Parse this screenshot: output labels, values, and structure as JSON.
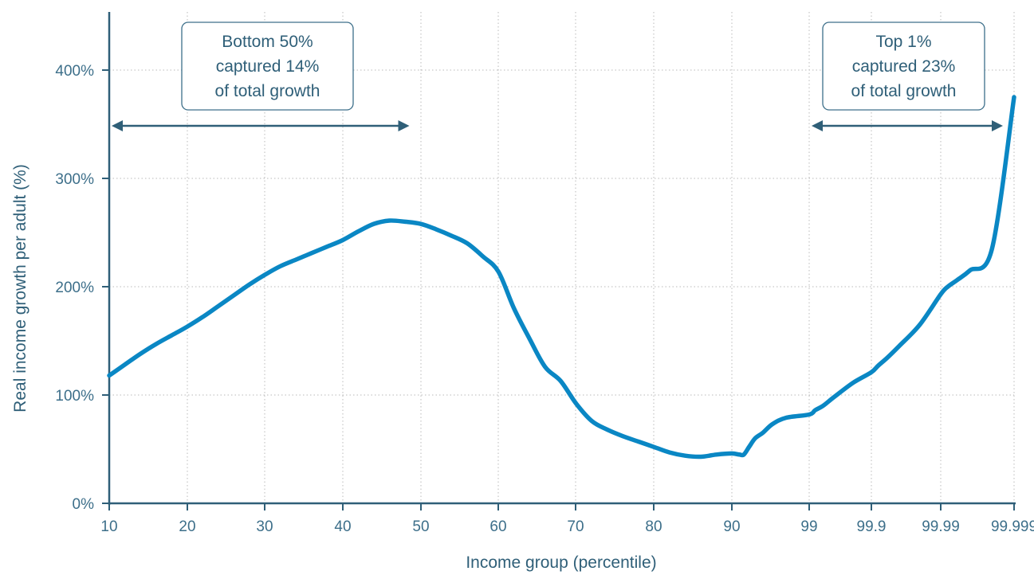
{
  "chart_data": {
    "type": "line",
    "xlabel": "Income group (percentile)",
    "ylabel": "Real income growth per adult (%)",
    "ylim": [
      0,
      450
    ],
    "y_ticks": [
      {
        "value": 0,
        "label": "0%"
      },
      {
        "value": 100,
        "label": "100%"
      },
      {
        "value": 200,
        "label": "200%"
      },
      {
        "value": 300,
        "label": "300%"
      },
      {
        "value": 400,
        "label": "400%"
      }
    ],
    "x_ticks": [
      "10",
      "20",
      "30",
      "40",
      "50",
      "60",
      "70",
      "80",
      "90",
      "99",
      "99.9",
      "99.99",
      "99.999"
    ],
    "grid": true,
    "line_color": "#0a87c4",
    "series": [
      {
        "x": [
          10,
          12,
          14,
          16,
          18,
          20,
          22,
          24,
          26,
          28,
          30,
          32,
          34,
          36,
          38,
          40,
          42,
          44,
          46,
          48,
          50,
          52,
          54,
          56,
          58,
          60,
          62,
          64,
          66,
          68,
          70,
          72,
          74,
          76,
          78,
          80,
          82,
          84,
          86,
          88,
          90,
          92,
          93,
          94,
          95,
          96,
          97,
          98,
          99,
          99.2,
          99.4,
          99.6,
          99.8,
          99.9,
          99.92,
          99.94,
          99.96,
          99.98,
          99.99,
          99.992,
          99.994,
          99.996,
          99.998,
          99.999
        ],
        "y": [
          118,
          128,
          138,
          147,
          155,
          163,
          172,
          182,
          192,
          202,
          211,
          219,
          225,
          231,
          237,
          243,
          251,
          258,
          261,
          260,
          258,
          253,
          247,
          240,
          228,
          214,
          180,
          152,
          126,
          113,
          92,
          76,
          68,
          62,
          57,
          52,
          47,
          44,
          43,
          45,
          46,
          45,
          45,
          52,
          60,
          65,
          73,
          79,
          82,
          86,
          90,
          98,
          111,
          121,
          127,
          134,
          145,
          165,
          193,
          200,
          206,
          215,
          235,
          375
        ]
      }
    ],
    "annotations": [
      {
        "lines": [
          "Bottom 50%",
          "captured 14%",
          "of total growth"
        ],
        "from": 10,
        "to": 50
      },
      {
        "lines": [
          "Top 1%",
          "captured 23%",
          "of total growth"
        ],
        "from": 99,
        "to": 99.999
      }
    ]
  }
}
